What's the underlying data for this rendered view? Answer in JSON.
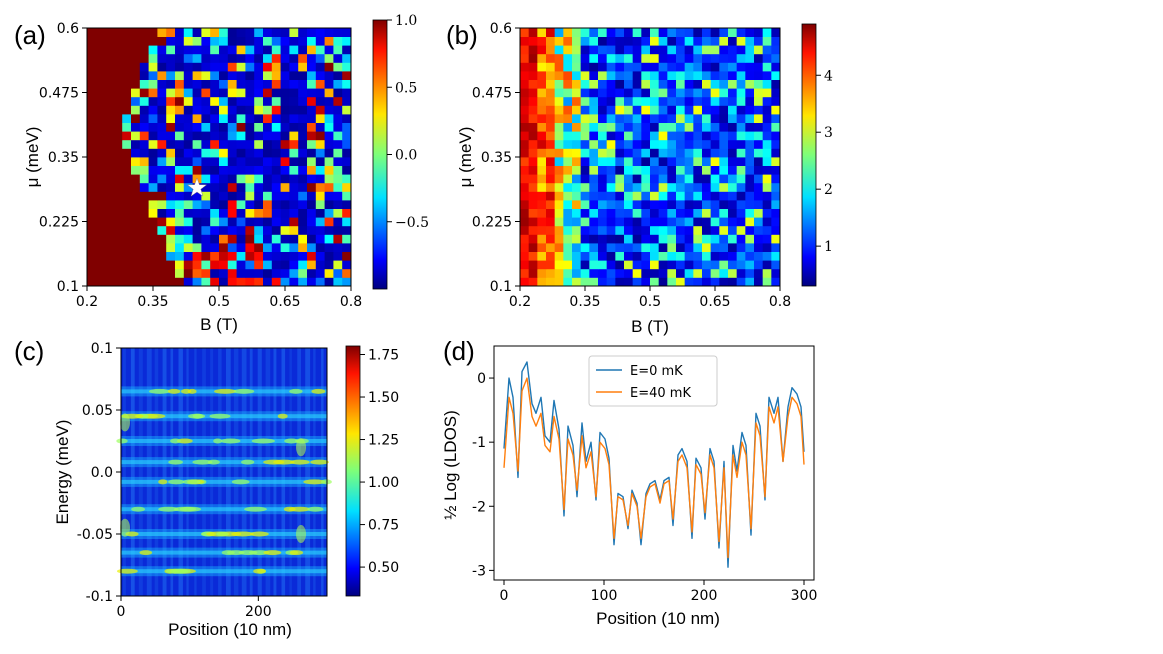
{
  "panels": {
    "a": "(a)",
    "b": "(b)",
    "c": "(c)",
    "d": "(d)"
  },
  "chart_data": [
    {
      "id": "a",
      "type": "heatmap",
      "title": "",
      "xlabel": "B (T)",
      "ylabel": "μ (meV)",
      "xlim": [
        0.2,
        0.8
      ],
      "ylim": [
        0.1,
        0.6
      ],
      "xticks": [
        "0.2",
        "0.35",
        "0.5",
        "0.65",
        "0.8"
      ],
      "xtick_values": [
        0.2,
        0.35,
        0.5,
        0.65,
        0.8
      ],
      "yticks": [
        "0.1",
        "0.225",
        "0.35",
        "0.475",
        "0.6"
      ],
      "ytick_values": [
        0.1,
        0.225,
        0.35,
        0.475,
        0.6
      ],
      "grid": [
        30,
        30
      ],
      "colorscale": "jet",
      "clim": [
        -1.0,
        1.0
      ],
      "colorbar_ticks": [
        "1.0",
        "0.5",
        "0.0",
        "−0.5"
      ],
      "colorbar_tick_values": [
        1.0,
        0.5,
        0.0,
        -0.5
      ],
      "marker": {
        "symbol": "star",
        "B": 0.45,
        "mu": 0.29,
        "color": "#ffffff"
      }
    },
    {
      "id": "b",
      "type": "heatmap",
      "title": "",
      "xlabel": "B (T)",
      "ylabel": "μ (meV)",
      "xlim": [
        0.2,
        0.8
      ],
      "ylim": [
        0.1,
        0.6
      ],
      "xticks": [
        "0.2",
        "0.35",
        "0.5",
        "0.65",
        "0.8"
      ],
      "xtick_values": [
        0.2,
        0.35,
        0.5,
        0.65,
        0.8
      ],
      "yticks": [
        "0.1",
        "0.225",
        "0.35",
        "0.475",
        "0.6"
      ],
      "ytick_values": [
        0.1,
        0.225,
        0.35,
        0.475,
        0.6
      ],
      "grid": [
        30,
        30
      ],
      "colorscale": "jet",
      "clim": [
        0.3,
        4.9
      ],
      "colorbar_ticks": [
        "4",
        "3",
        "2",
        "1"
      ],
      "colorbar_tick_values": [
        4,
        3,
        2,
        1
      ]
    },
    {
      "id": "c",
      "type": "heatmap",
      "title": "",
      "xlabel": "Position (10 nm)",
      "ylabel": "Energy (meV)",
      "xlim": [
        0,
        300
      ],
      "ylim": [
        -0.1,
        0.1
      ],
      "xticks": [
        "0",
        "200"
      ],
      "xtick_values": [
        0,
        200
      ],
      "yticks": [
        "0.1",
        "0.05",
        "0.0",
        "-0.05",
        "-0.1"
      ],
      "ytick_values": [
        0.1,
        0.05,
        0.0,
        -0.05,
        -0.1
      ],
      "colorscale": "jet",
      "clim": [
        0.33,
        1.8
      ],
      "colorbar_ticks": [
        "1.75",
        "1.50",
        "1.25",
        "1.00",
        "0.75",
        "0.50"
      ],
      "colorbar_tick_values": [
        1.75,
        1.5,
        1.25,
        1.0,
        0.75,
        0.5
      ],
      "bright_energies": [
        0.065,
        0.045,
        0.025,
        0.008,
        -0.008,
        -0.03,
        -0.05,
        -0.065,
        -0.08
      ]
    },
    {
      "id": "d",
      "type": "line",
      "title": "",
      "xlabel": "Position (10 nm)",
      "ylabel": "½ Log (LDOS)",
      "xlim": [
        -10,
        310
      ],
      "ylim": [
        -3.15,
        0.5
      ],
      "xticks": [
        "0",
        "100",
        "200",
        "300"
      ],
      "xtick_values": [
        0,
        100,
        200,
        300
      ],
      "yticks": [
        "0",
        "-1",
        "-2",
        "-3"
      ],
      "ytick_values": [
        0,
        -1,
        -2,
        -3
      ],
      "legend_position": "top-center",
      "series": [
        {
          "name": "E=0 mK",
          "color": "#1f77b4",
          "x": [
            0,
            5,
            9,
            14,
            18,
            23,
            28,
            32,
            37,
            41,
            46,
            50,
            55,
            60,
            64,
            69,
            73,
            78,
            82,
            87,
            92,
            96,
            101,
            105,
            110,
            114,
            119,
            124,
            128,
            133,
            137,
            142,
            146,
            151,
            156,
            160,
            165,
            169,
            174,
            178,
            183,
            188,
            192,
            197,
            201,
            206,
            210,
            215,
            220,
            224,
            229,
            233,
            238,
            242,
            247,
            252,
            256,
            261,
            265,
            270,
            274,
            279,
            284,
            288,
            293,
            297,
            300
          ],
          "y": [
            -1.1,
            0.0,
            -0.3,
            -1.55,
            0.1,
            0.25,
            -0.4,
            -0.55,
            -0.3,
            -0.9,
            -1.0,
            -0.35,
            -0.8,
            -2.15,
            -0.75,
            -1.05,
            -1.85,
            -0.7,
            -1.3,
            -1.0,
            -1.9,
            -0.85,
            -0.95,
            -1.25,
            -2.6,
            -1.8,
            -1.85,
            -2.35,
            -1.75,
            -1.95,
            -2.6,
            -1.8,
            -1.65,
            -1.6,
            -1.9,
            -1.6,
            -1.55,
            -2.3,
            -1.2,
            -1.1,
            -1.3,
            -2.5,
            -1.25,
            -1.4,
            -2.2,
            -1.1,
            -1.3,
            -2.65,
            -1.3,
            -2.95,
            -1.05,
            -1.45,
            -0.85,
            -1.05,
            -2.45,
            -0.55,
            -0.75,
            -1.9,
            -0.3,
            -0.55,
            -0.3,
            -1.3,
            -0.45,
            -0.15,
            -0.25,
            -0.45,
            -1.15
          ]
        },
        {
          "name": "E=40 mK",
          "color": "#ff7f0e",
          "x": [
            0,
            5,
            9,
            14,
            18,
            23,
            28,
            32,
            37,
            41,
            46,
            50,
            55,
            60,
            64,
            69,
            73,
            78,
            82,
            87,
            92,
            96,
            101,
            105,
            110,
            114,
            119,
            124,
            128,
            133,
            137,
            142,
            146,
            151,
            156,
            160,
            165,
            169,
            174,
            178,
            183,
            188,
            192,
            197,
            201,
            206,
            210,
            215,
            220,
            224,
            229,
            233,
            238,
            242,
            247,
            252,
            256,
            261,
            265,
            270,
            274,
            279,
            284,
            288,
            293,
            297,
            300
          ],
          "y": [
            -1.4,
            -0.3,
            -0.55,
            -1.45,
            -0.2,
            0.0,
            -0.6,
            -0.75,
            -0.55,
            -1.05,
            -1.15,
            -0.6,
            -0.95,
            -2.05,
            -0.95,
            -1.2,
            -1.75,
            -0.9,
            -1.4,
            -1.15,
            -1.85,
            -1.0,
            -1.1,
            -1.35,
            -2.5,
            -1.85,
            -1.9,
            -2.3,
            -1.8,
            -2.0,
            -2.5,
            -1.85,
            -1.7,
            -1.65,
            -1.95,
            -1.65,
            -1.6,
            -2.2,
            -1.3,
            -1.2,
            -1.4,
            -2.4,
            -1.35,
            -1.5,
            -2.1,
            -1.2,
            -1.4,
            -2.55,
            -1.4,
            -2.8,
            -1.2,
            -1.55,
            -1.0,
            -1.2,
            -2.35,
            -0.7,
            -0.9,
            -1.85,
            -0.45,
            -0.7,
            -0.45,
            -1.3,
            -0.6,
            -0.3,
            -0.4,
            -0.6,
            -1.35
          ]
        }
      ]
    }
  ]
}
